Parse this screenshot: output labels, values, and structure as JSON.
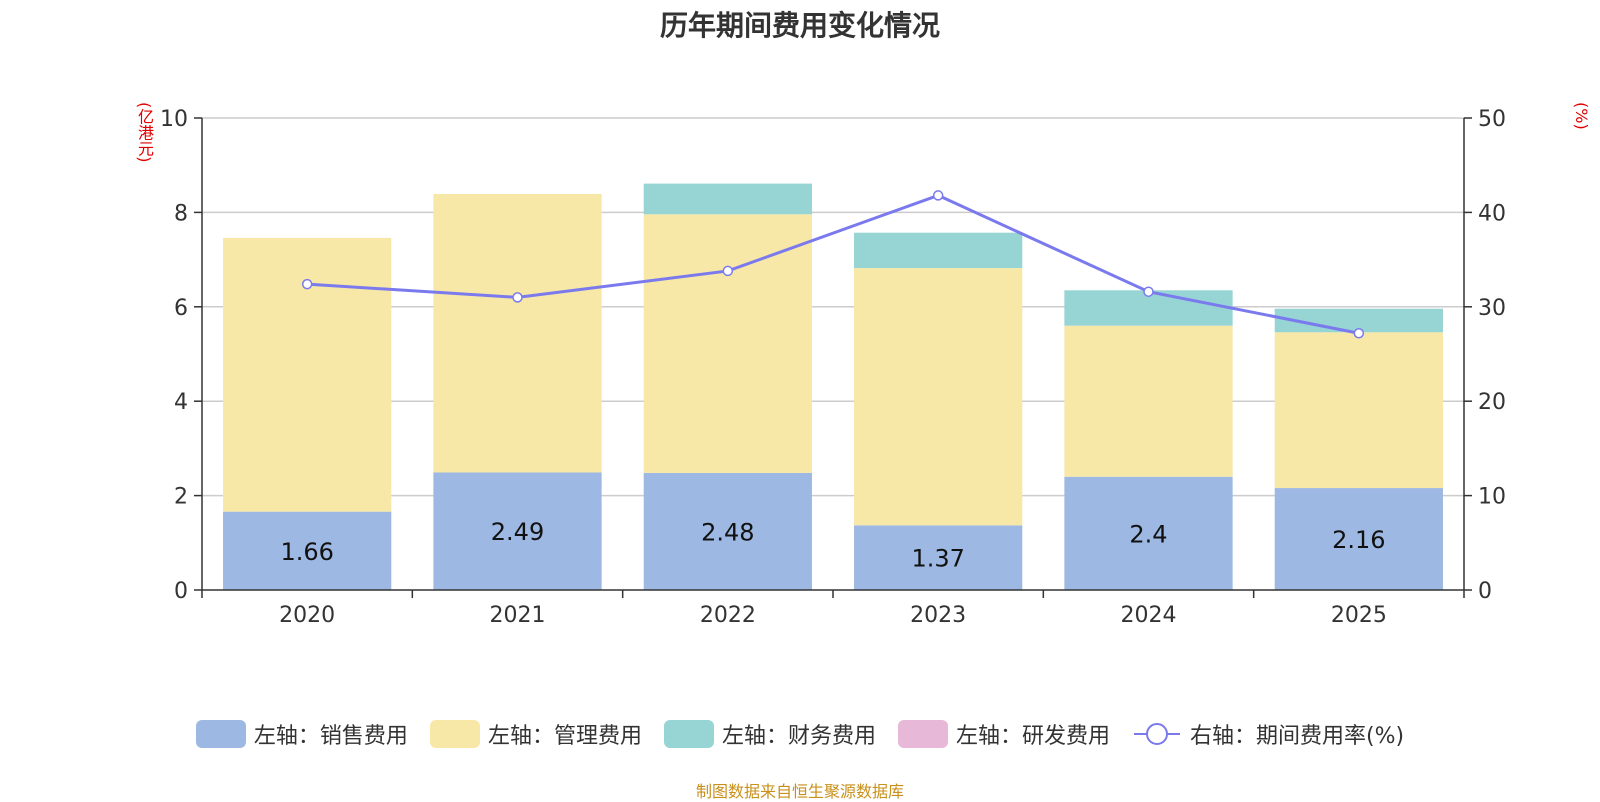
{
  "title": "历年期间费用变化情况",
  "source": "制图数据来自恒生聚源数据库",
  "colors": {
    "sales": "#9db8e2",
    "admin": "#f8e8a8",
    "finance": "#97d4d4",
    "rd": "#e8b8d8",
    "rate": "#7a7aee",
    "axis_unit": "#e00000"
  },
  "chart_data": {
    "type": "bar",
    "stacked": true,
    "title": "历年期间费用变化情况",
    "categories": [
      "2020",
      "2021",
      "2022",
      "2023",
      "2024",
      "2025"
    ],
    "y_left": {
      "label": "(亿港元)",
      "range": [
        0,
        10
      ],
      "ticks": [
        "0",
        "2",
        "4",
        "6",
        "8",
        "10"
      ]
    },
    "y_right": {
      "label": "(%)",
      "range": [
        0,
        50
      ],
      "ticks": [
        "0",
        "10",
        "20",
        "30",
        "40",
        "50"
      ]
    },
    "series": [
      {
        "name": "左轴：销售费用",
        "key": "sales",
        "axis": "left",
        "type": "bar",
        "values": [
          1.66,
          2.49,
          2.48,
          1.37,
          2.4,
          2.16
        ],
        "labels": [
          "1.66",
          "2.49",
          "2.48",
          "1.37",
          "2.4",
          "2.16"
        ]
      },
      {
        "name": "左轴：管理费用",
        "key": "admin",
        "axis": "left",
        "type": "bar",
        "values": [
          5.8,
          5.9,
          5.48,
          5.45,
          3.2,
          3.3
        ]
      },
      {
        "name": "左轴：财务费用",
        "key": "finance",
        "axis": "left",
        "type": "bar",
        "values": [
          0,
          0,
          0.65,
          0.75,
          0.75,
          0.5
        ]
      },
      {
        "name": "左轴：研发费用",
        "key": "rd",
        "axis": "left",
        "type": "bar",
        "values": [
          0,
          0,
          0,
          0,
          0,
          0
        ]
      },
      {
        "name": "右轴：期间费用率(%)",
        "key": "rate",
        "axis": "right",
        "type": "line",
        "values": [
          32.4,
          31.0,
          33.8,
          41.8,
          31.6,
          27.2
        ]
      }
    ],
    "legend_position": "bottom",
    "grid": true
  }
}
